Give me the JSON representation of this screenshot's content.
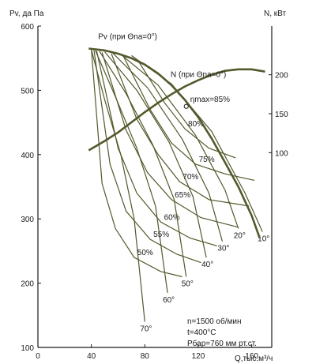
{
  "chart_data": {
    "type": "line",
    "title": "",
    "xlabel": "Q,тыс.м³/ч",
    "ylabel_left": "Pv, да Па",
    "ylabel_right": "N, кВт",
    "x_ticks": [
      "0",
      "40",
      "80",
      "120",
      "160"
    ],
    "x_tick_values": [
      0,
      40,
      80,
      120,
      160
    ],
    "y_left_ticks": [
      "100",
      "200",
      "300",
      "400",
      "500",
      "600"
    ],
    "y_left_tick_values": [
      100,
      200,
      300,
      400,
      500,
      600
    ],
    "y_right_ticks": [
      "100",
      "150",
      "200"
    ],
    "y_right_tick_values": [
      100,
      150,
      200
    ],
    "xlim": [
      0,
      175
    ],
    "ylim_left": [
      100,
      600
    ],
    "ylim_right": [
      -150,
      262.5
    ],
    "grid": false,
    "colors": {
      "curve": "#54582a",
      "text": "#1a1a1a",
      "frame": "#1a1a1a"
    },
    "series": [
      {
        "name": "Pv (при Θna=0°)",
        "axis": "left",
        "points": [
          [
            38,
            565
          ],
          [
            50,
            562
          ],
          [
            60,
            557
          ],
          [
            70,
            550
          ],
          [
            80,
            540
          ],
          [
            90,
            526
          ],
          [
            100,
            508
          ],
          [
            110,
            485
          ],
          [
            120,
            458
          ],
          [
            130,
            425
          ],
          [
            140,
            388
          ],
          [
            150,
            350
          ],
          [
            160,
            305
          ],
          [
            166,
            270
          ]
        ]
      },
      {
        "name": "N (при Θna=0°)",
        "axis": "right",
        "points": [
          [
            38,
            103
          ],
          [
            50,
            115
          ],
          [
            60,
            126
          ],
          [
            70,
            139
          ],
          [
            80,
            152
          ],
          [
            90,
            164
          ],
          [
            100,
            175
          ],
          [
            110,
            185
          ],
          [
            120,
            193
          ],
          [
            130,
            200
          ],
          [
            140,
            205
          ],
          [
            150,
            207
          ],
          [
            160,
            207
          ],
          [
            170,
            204
          ]
        ]
      }
    ],
    "blade_angle_curves": [
      {
        "label": "10°",
        "points": [
          [
            70,
            554
          ],
          [
            100,
            510
          ],
          [
            130,
            436
          ],
          [
            155,
            340
          ],
          [
            168,
            280
          ]
        ]
      },
      {
        "label": "20°",
        "points": [
          [
            62,
            556
          ],
          [
            90,
            508
          ],
          [
            118,
            430
          ],
          [
            140,
            345
          ],
          [
            150,
            285
          ]
        ]
      },
      {
        "label": "30°",
        "points": [
          [
            56,
            558
          ],
          [
            82,
            504
          ],
          [
            108,
            424
          ],
          [
            128,
            340
          ],
          [
            138,
            265
          ]
        ]
      },
      {
        "label": "40°",
        "points": [
          [
            50,
            560
          ],
          [
            74,
            500
          ],
          [
            98,
            420
          ],
          [
            116,
            335
          ],
          [
            126,
            240
          ]
        ]
      },
      {
        "label": "50°",
        "points": [
          [
            46,
            561
          ],
          [
            66,
            495
          ],
          [
            86,
            415
          ],
          [
            102,
            330
          ],
          [
            111,
            210
          ]
        ]
      },
      {
        "label": "60°",
        "points": [
          [
            43,
            562
          ],
          [
            58,
            490
          ],
          [
            74,
            410
          ],
          [
            88,
            320
          ],
          [
            97,
            185
          ]
        ]
      },
      {
        "label": "70°",
        "points": [
          [
            40,
            563
          ],
          [
            50,
            485
          ],
          [
            62,
            400
          ],
          [
            72,
            300
          ],
          [
            80,
            140
          ]
        ]
      }
    ],
    "efficiency_contours": [
      {
        "label": "80%",
        "points": [
          [
            75,
            546
          ],
          [
            95,
            480
          ],
          [
            110,
            440
          ],
          [
            128,
            410
          ],
          [
            148,
            395
          ]
        ]
      },
      {
        "label": "75%",
        "points": [
          [
            64,
            553
          ],
          [
            84,
            470
          ],
          [
            100,
            418
          ],
          [
            118,
            385
          ],
          [
            140,
            370
          ],
          [
            162,
            360
          ]
        ]
      },
      {
        "label": "70%",
        "points": [
          [
            55,
            557
          ],
          [
            74,
            455
          ],
          [
            90,
            400
          ],
          [
            106,
            358
          ],
          [
            128,
            330
          ],
          [
            158,
            320
          ]
        ]
      },
      {
        "label": "65%",
        "points": [
          [
            48,
            559
          ],
          [
            66,
            438
          ],
          [
            82,
            372
          ],
          [
            100,
            330
          ],
          [
            122,
            302
          ],
          [
            150,
            287
          ]
        ]
      },
      {
        "label": "60%",
        "points": [
          [
            44,
            561
          ],
          [
            60,
            410
          ],
          [
            74,
            340
          ],
          [
            92,
            295
          ],
          [
            114,
            270
          ],
          [
            134,
            258
          ]
        ]
      },
      {
        "label": "55%",
        "points": [
          [
            42,
            562
          ],
          [
            54,
            385
          ],
          [
            66,
            312
          ],
          [
            84,
            268
          ],
          [
            104,
            245
          ],
          [
            122,
            232
          ]
        ]
      },
      {
        "label": "50%",
        "points": [
          [
            40,
            563
          ],
          [
            48,
            355
          ],
          [
            58,
            285
          ],
          [
            72,
            240
          ],
          [
            92,
            218
          ],
          [
            108,
            210
          ]
        ]
      }
    ],
    "annotations": {
      "eta_label": "ηmax=85%",
      "eta_point": [
        111,
        475
      ],
      "speed": "n=1500 об/мин",
      "temperature": "t=400°C",
      "pressure": "Pбар=760 мм рт.ст."
    }
  }
}
